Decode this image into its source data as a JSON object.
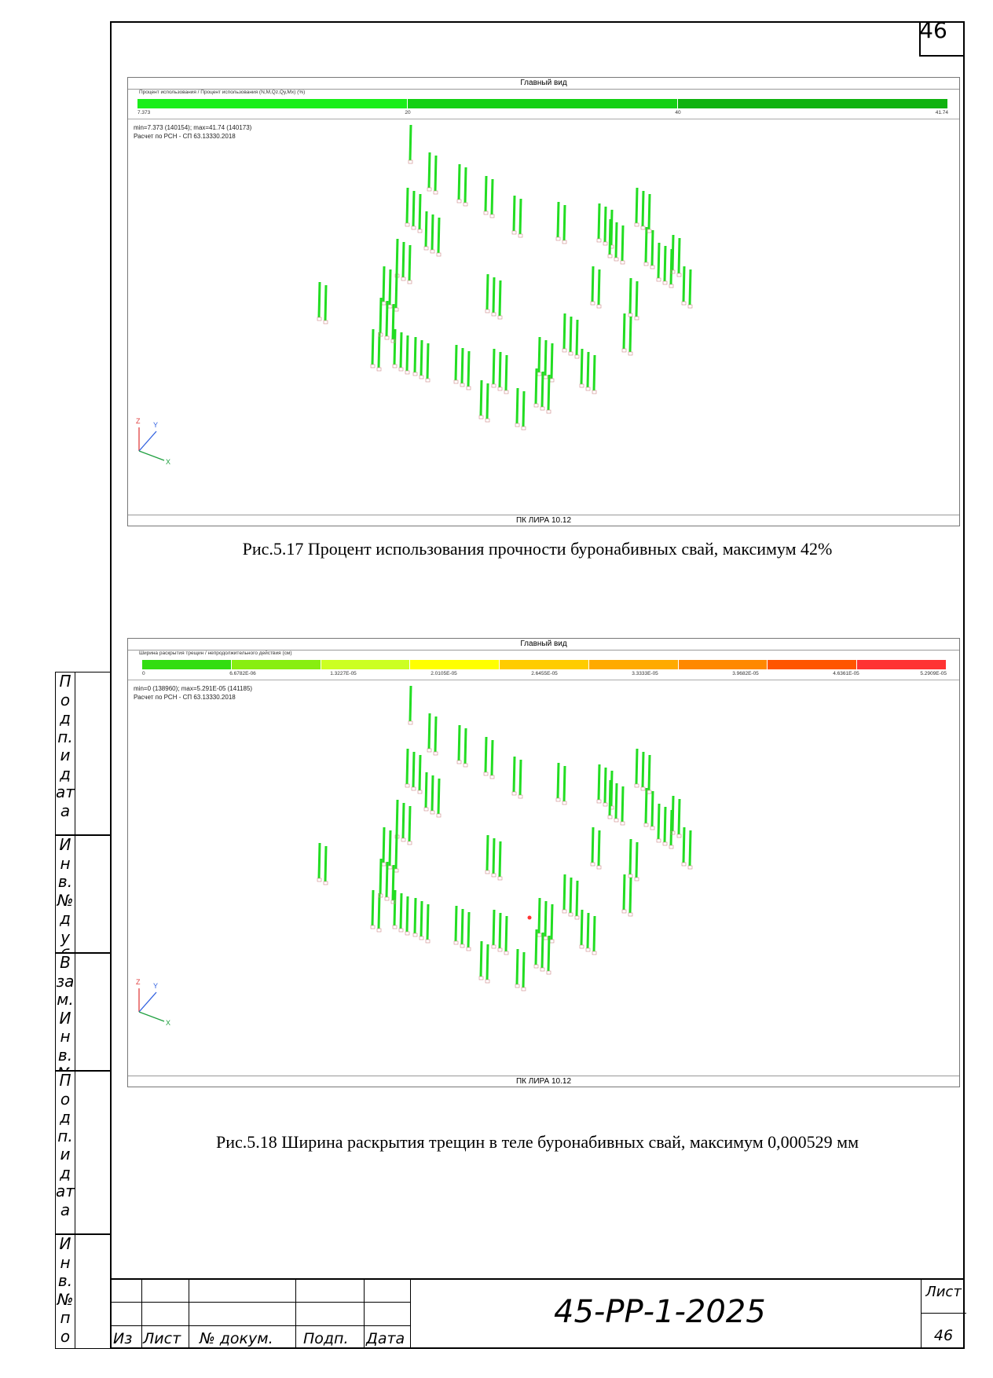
{
  "page_number": "46",
  "side_stamp": [
    {
      "text": "Подп. и дата"
    },
    {
      "text": "Инв. № дубл."
    },
    {
      "text": "Взам. Инв. №"
    },
    {
      "text": "Подп. и дата"
    },
    {
      "text": "Инв. № подл."
    }
  ],
  "figures": [
    {
      "view_title": "Главный вид",
      "legend_title": "Процент использования / Процент использования (N,M,Qz,Qy,Mx) (%)",
      "colors": [
        "#1aee1a",
        "#14d014",
        "#0fb20f"
      ],
      "tick_labels": [
        "7.373",
        "20",
        "40",
        "41.74"
      ],
      "info_line1": "min=7.373 (140154); max=41.74 (140173)",
      "info_line2": "Расчет по РСН - СП 63.13330.2018",
      "axis_z": "Z",
      "axis_y": "Y",
      "axis_x": "X",
      "footer": "ПК ЛИРА 10.12",
      "caption": "Рис.5.17 Процент использования прочности буронабивных свай, максимум 42%"
    },
    {
      "view_title": "Главный вид",
      "legend_title": "Ширина раскрытия трещин / непродолжительного действия (см)",
      "colors": [
        "#33dd11",
        "#88ee11",
        "#ccff22",
        "#ffff00",
        "#ffcc00",
        "#ffaa00",
        "#ff8800",
        "#ff5500",
        "#ff3333"
      ],
      "tick_labels": [
        "0",
        "6.6782E-06",
        "1.3227E-05",
        "2.0105E-05",
        "2.6455E-05",
        "3.3333E-05",
        "3.9682E-05",
        "4.6361E-05",
        "5.2909E-05"
      ],
      "info_line1": "min=0 (138960); max=5.291E-05 (141185)",
      "info_line2": "Расчет по РСН - СП 63.13330.2018",
      "axis_z": "Z",
      "axis_y": "Y",
      "axis_x": "X",
      "footer": "ПК ЛИРА 10.12",
      "caption": "Рис.5.18 Ширина раскрытия трещин в теле буронабивных свай, максимум 0,000529 мм"
    }
  ],
  "title_block": {
    "col_izm": "Из",
    "col_list": "Лист",
    "col_doc": "№ докум.",
    "col_sign": "Подп.",
    "col_date": "Дата",
    "doc_code": "45-РР-1-2025",
    "sheet_label": "Лист",
    "sheet_number": "46"
  }
}
